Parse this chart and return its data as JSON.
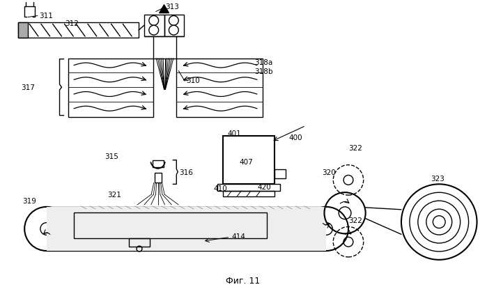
{
  "bg_color": "#ffffff",
  "line_color": "#000000",
  "fig_label": "Фиг. 11"
}
